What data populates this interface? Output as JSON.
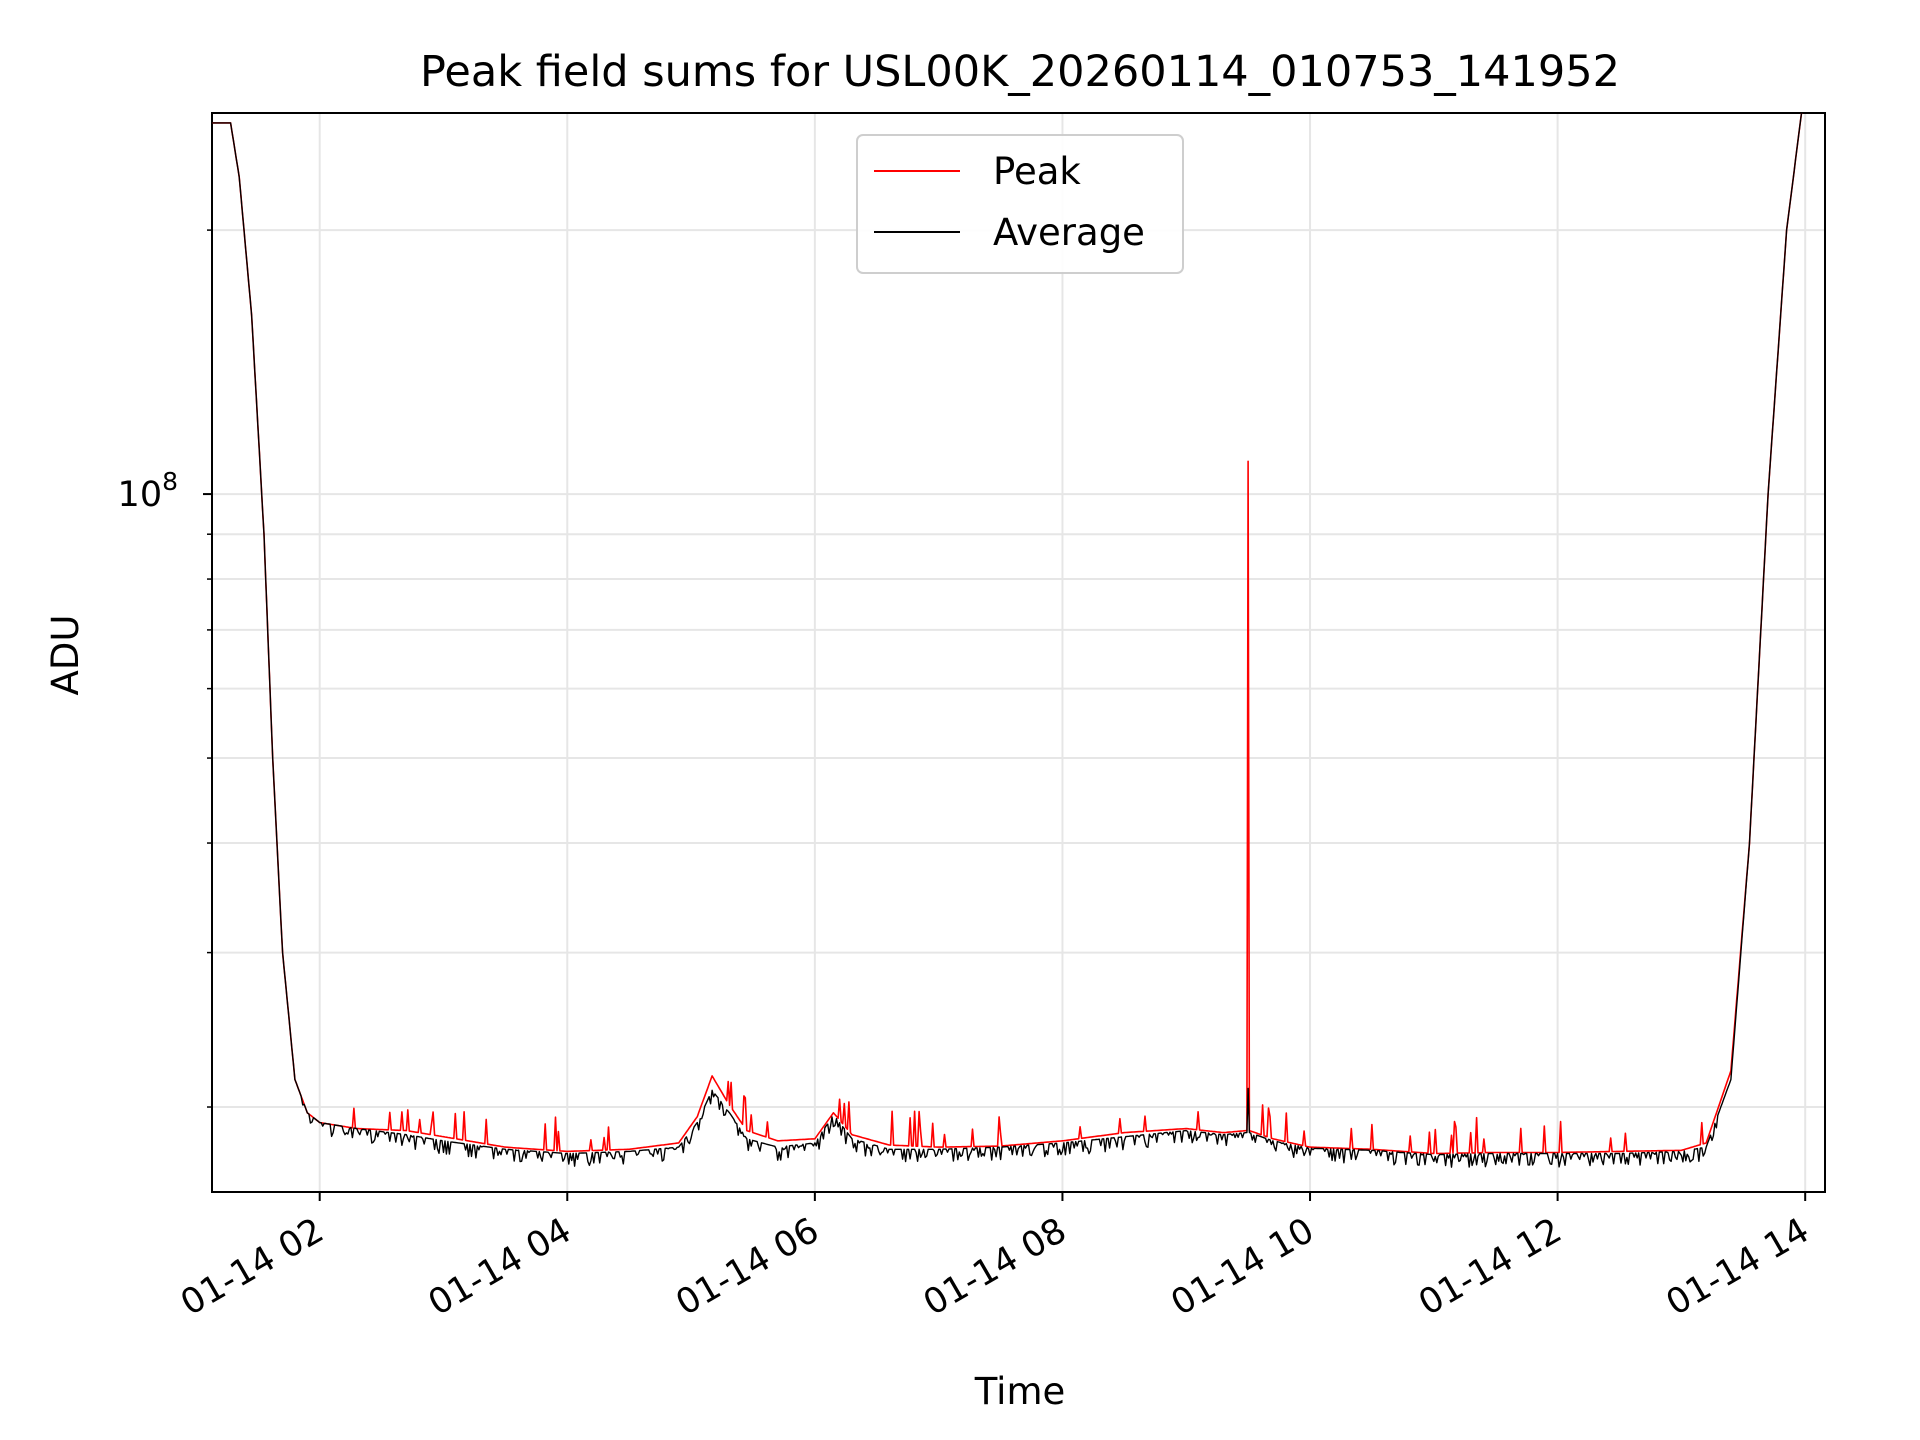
{
  "chart_data": {
    "type": "line",
    "title": "Peak field sums for USL00K_20260114_010753_141952",
    "xlabel": "Time",
    "ylabel": "ADU",
    "y_scale": "log",
    "ylim": [
      16000000,
      272000000
    ],
    "xlim_hours": [
      1.13,
      14.16
    ],
    "x_ticks": [
      {
        "hour": 2,
        "label": "01-14 02"
      },
      {
        "hour": 4,
        "label": "01-14 04"
      },
      {
        "hour": 6,
        "label": "01-14 06"
      },
      {
        "hour": 8,
        "label": "01-14 08"
      },
      {
        "hour": 10,
        "label": "01-14 10"
      },
      {
        "hour": 12,
        "label": "01-14 12"
      },
      {
        "hour": 14,
        "label": "01-14 14"
      }
    ],
    "y_major_ticks": [
      {
        "value": 100000000,
        "base": "10",
        "exp": "8"
      }
    ],
    "y_minor_ticks": [
      20000000,
      30000000,
      40000000,
      50000000,
      60000000,
      70000000,
      80000000,
      90000000,
      200000000
    ],
    "grid": true,
    "legend_position": "upper-center",
    "series": [
      {
        "name": "Peak",
        "color": "#ff0000",
        "points": [
          [
            1.13,
            265000000
          ],
          [
            1.28,
            265000000
          ],
          [
            1.35,
            230000000
          ],
          [
            1.45,
            160000000
          ],
          [
            1.55,
            90000000
          ],
          [
            1.62,
            50000000
          ],
          [
            1.7,
            30000000
          ],
          [
            1.8,
            21500000
          ],
          [
            1.9,
            19700000
          ],
          [
            2.0,
            19200000
          ],
          [
            2.3,
            18900000
          ],
          [
            2.7,
            18800000
          ],
          [
            3.0,
            18500000
          ],
          [
            3.5,
            18000000
          ],
          [
            4.0,
            17800000
          ],
          [
            4.5,
            17900000
          ],
          [
            4.9,
            18200000
          ],
          [
            5.05,
            19500000
          ],
          [
            5.17,
            21700000
          ],
          [
            5.3,
            20200000
          ],
          [
            5.45,
            18800000
          ],
          [
            5.7,
            18300000
          ],
          [
            6.0,
            18400000
          ],
          [
            6.15,
            19700000
          ],
          [
            6.3,
            18600000
          ],
          [
            6.6,
            18100000
          ],
          [
            7.0,
            18000000
          ],
          [
            7.5,
            18050000
          ],
          [
            8.0,
            18300000
          ],
          [
            8.5,
            18700000
          ],
          [
            9.0,
            18900000
          ],
          [
            9.3,
            18700000
          ],
          [
            9.49,
            18800000
          ],
          [
            9.5,
            109000000
          ],
          [
            9.51,
            18800000
          ],
          [
            9.7,
            18400000
          ],
          [
            10.0,
            18000000
          ],
          [
            10.5,
            17900000
          ],
          [
            11.0,
            17700000
          ],
          [
            11.5,
            17750000
          ],
          [
            12.0,
            17750000
          ],
          [
            12.5,
            17800000
          ],
          [
            13.0,
            17850000
          ],
          [
            13.2,
            18200000
          ],
          [
            13.4,
            22000000
          ],
          [
            13.55,
            40000000
          ],
          [
            13.7,
            100000000
          ],
          [
            13.85,
            200000000
          ],
          [
            13.97,
            272000000
          ]
        ]
      },
      {
        "name": "Average",
        "color": "#000000",
        "points": [
          [
            1.13,
            265000000
          ],
          [
            1.28,
            265000000
          ],
          [
            1.35,
            230000000
          ],
          [
            1.45,
            160000000
          ],
          [
            1.55,
            90000000
          ],
          [
            1.62,
            50000000
          ],
          [
            1.7,
            30000000
          ],
          [
            1.8,
            21500000
          ],
          [
            1.9,
            19700000
          ],
          [
            2.0,
            19200000
          ],
          [
            2.3,
            18900000
          ],
          [
            2.7,
            18600000
          ],
          [
            3.0,
            18300000
          ],
          [
            3.5,
            17900000
          ],
          [
            4.0,
            17700000
          ],
          [
            4.5,
            17800000
          ],
          [
            4.9,
            18000000
          ],
          [
            5.05,
            19200000
          ],
          [
            5.17,
            20900000
          ],
          [
            5.3,
            19800000
          ],
          [
            5.45,
            18400000
          ],
          [
            5.7,
            18000000
          ],
          [
            6.0,
            18200000
          ],
          [
            6.15,
            19600000
          ],
          [
            6.3,
            18400000
          ],
          [
            6.6,
            17900000
          ],
          [
            7.0,
            17900000
          ],
          [
            7.5,
            18000000
          ],
          [
            8.0,
            18200000
          ],
          [
            8.5,
            18500000
          ],
          [
            9.0,
            18800000
          ],
          [
            9.3,
            18600000
          ],
          [
            9.49,
            18700000
          ],
          [
            9.5,
            21000000
          ],
          [
            9.51,
            18700000
          ],
          [
            9.7,
            18300000
          ],
          [
            10.0,
            17950000
          ],
          [
            10.5,
            17850000
          ],
          [
            11.0,
            17650000
          ],
          [
            11.5,
            17700000
          ],
          [
            12.0,
            17700000
          ],
          [
            12.5,
            17700000
          ],
          [
            13.0,
            17800000
          ],
          [
            13.2,
            18000000
          ],
          [
            13.4,
            21500000
          ],
          [
            13.55,
            40000000
          ],
          [
            13.7,
            100000000
          ],
          [
            13.85,
            200000000
          ],
          [
            13.97,
            272000000
          ]
        ]
      }
    ]
  }
}
